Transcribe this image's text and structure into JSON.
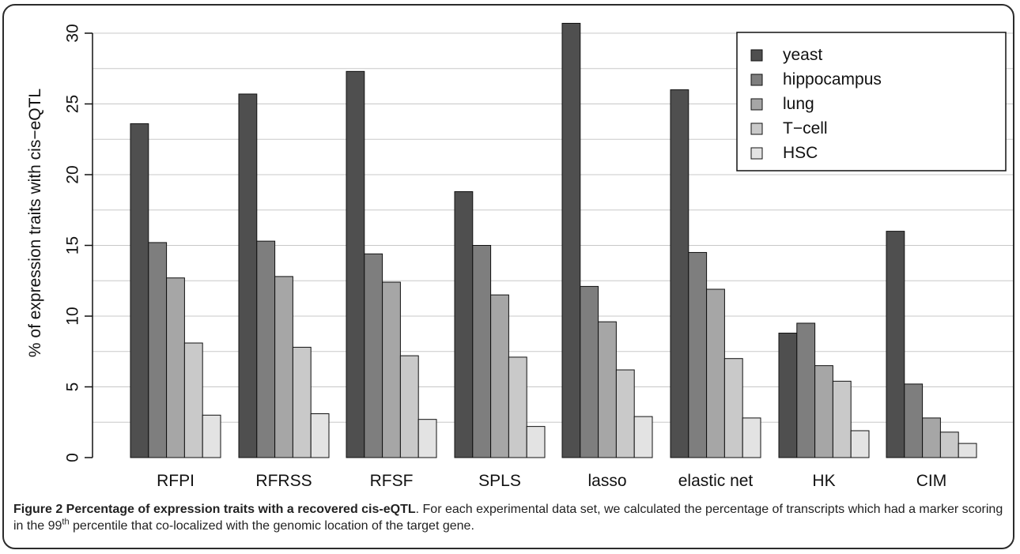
{
  "chart_data": {
    "type": "bar",
    "title": "",
    "xlabel": "",
    "ylabel": "% of expression traits with cis−eQTL",
    "ylim": [
      0,
      31
    ],
    "yticks": [
      0,
      5,
      10,
      15,
      20,
      25,
      30
    ],
    "grid": "horizontal",
    "legend_position": "top-right",
    "categories": [
      "RFPI",
      "RFRSS",
      "RFSF",
      "SPLS",
      "lasso",
      "elastic net",
      "HK",
      "CIM"
    ],
    "series": [
      {
        "name": "yeast",
        "color": "#4f4f4f",
        "values": [
          23.6,
          25.7,
          27.3,
          18.8,
          30.7,
          26.0,
          8.8,
          16.0
        ]
      },
      {
        "name": "hippocampus",
        "color": "#7e7e7e",
        "values": [
          15.2,
          15.3,
          14.4,
          15.0,
          12.1,
          14.5,
          9.5,
          5.2
        ]
      },
      {
        "name": "lung",
        "color": "#a6a6a6",
        "values": [
          12.7,
          12.8,
          12.4,
          11.5,
          9.6,
          11.9,
          6.5,
          2.8
        ]
      },
      {
        "name": "T−cell",
        "color": "#c9c9c9",
        "values": [
          8.1,
          7.8,
          7.2,
          7.1,
          6.2,
          7.0,
          5.4,
          1.8
        ]
      },
      {
        "name": "HSC",
        "color": "#e3e3e3",
        "values": [
          3.0,
          3.1,
          2.7,
          2.2,
          2.9,
          2.8,
          1.9,
          1.0
        ]
      }
    ]
  },
  "caption": {
    "bold": "Figure 2 Percentage of expression traits with a recovered cis-eQTL",
    "text_before_sup": ". For each experimental data set, we calculated the percentage of transcripts which had a marker scoring in the 99",
    "sup": "th",
    "text_after_sup": " percentile that co-localized with the genomic location of the target gene."
  }
}
